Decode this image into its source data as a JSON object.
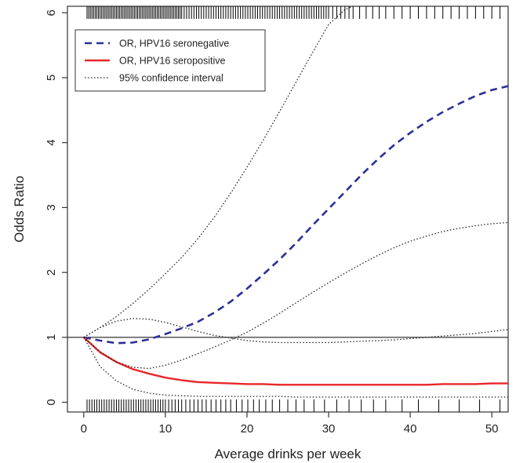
{
  "chart_data": {
    "type": "line",
    "title": "",
    "xlabel": "Average drinks per week",
    "ylabel": "Odds Ratio",
    "xlim": [
      -2,
      52
    ],
    "ylim": [
      -0.15,
      6.1
    ],
    "xticks": [
      0,
      10,
      20,
      30,
      40,
      50
    ],
    "yticks": [
      0,
      1,
      2,
      3,
      4,
      5,
      6
    ],
    "grid": false,
    "legend_position": "top-left",
    "reference_line": 1,
    "series": [
      {
        "name": "OR, HPV16 seronegative",
        "style": "dashed",
        "color": "#2b2f9a",
        "x": [
          0,
          2,
          4,
          6,
          8,
          10,
          12,
          14,
          16,
          18,
          20,
          22,
          24,
          26,
          28,
          30,
          32,
          34,
          36,
          38,
          40,
          42,
          44,
          46,
          48,
          50,
          52
        ],
        "y": [
          1.0,
          0.95,
          0.91,
          0.92,
          0.97,
          1.05,
          1.14,
          1.24,
          1.38,
          1.55,
          1.75,
          1.97,
          2.2,
          2.45,
          2.72,
          2.98,
          3.24,
          3.5,
          3.74,
          3.96,
          4.15,
          4.32,
          4.47,
          4.6,
          4.72,
          4.81,
          4.87
        ]
      },
      {
        "name": "OR, HPV16 seropositive",
        "style": "solid",
        "color": "#e8262a",
        "x": [
          0,
          2,
          4,
          6,
          8,
          10,
          12,
          14,
          16,
          18,
          20,
          22,
          24,
          26,
          28,
          30,
          32,
          34,
          36,
          38,
          40,
          42,
          44,
          46,
          48,
          50,
          52
        ],
        "y": [
          1.0,
          0.77,
          0.62,
          0.51,
          0.44,
          0.38,
          0.34,
          0.31,
          0.3,
          0.29,
          0.28,
          0.28,
          0.27,
          0.27,
          0.27,
          0.27,
          0.27,
          0.27,
          0.27,
          0.27,
          0.27,
          0.27,
          0.28,
          0.28,
          0.28,
          0.29,
          0.29
        ]
      },
      {
        "name": "95% confidence interval",
        "style": "dotted",
        "color": "#222222",
        "x": [
          0,
          2,
          4,
          6,
          8,
          10,
          12,
          14,
          16,
          18,
          20,
          22,
          24,
          26,
          28,
          30,
          32,
          33
        ],
        "y": [
          1.0,
          1.15,
          1.32,
          1.52,
          1.74,
          1.98,
          2.23,
          2.52,
          2.85,
          3.22,
          3.62,
          4.04,
          4.48,
          4.93,
          5.38,
          5.82,
          6.05,
          6.1
        ]
      },
      {
        "name": "",
        "style": "dotted",
        "color": "#222222",
        "x": [
          0,
          2,
          4,
          6,
          8,
          10,
          12,
          14,
          16,
          18,
          20,
          22,
          24,
          26,
          28,
          30,
          32,
          34,
          36,
          38,
          40,
          42,
          44,
          46,
          48,
          50,
          52
        ],
        "y": [
          1.0,
          0.78,
          0.62,
          0.54,
          0.52,
          0.57,
          0.65,
          0.75,
          0.85,
          0.96,
          1.08,
          1.22,
          1.37,
          1.53,
          1.69,
          1.84,
          1.99,
          2.13,
          2.26,
          2.38,
          2.48,
          2.56,
          2.63,
          2.68,
          2.72,
          2.75,
          2.77
        ]
      },
      {
        "name": "",
        "style": "dotted",
        "color": "#222222",
        "x": [
          0,
          2,
          4,
          6,
          8,
          10,
          12,
          14,
          16,
          18,
          20,
          22,
          24,
          26,
          28,
          30,
          32,
          34,
          36,
          38,
          40,
          42,
          44,
          46,
          48,
          50,
          52
        ],
        "y": [
          1.0,
          1.15,
          1.25,
          1.29,
          1.28,
          1.23,
          1.16,
          1.09,
          1.03,
          0.99,
          0.95,
          0.93,
          0.92,
          0.92,
          0.92,
          0.92,
          0.93,
          0.94,
          0.95,
          0.96,
          0.98,
          1.0,
          1.02,
          1.04,
          1.06,
          1.09,
          1.12
        ]
      },
      {
        "name": "",
        "style": "dotted",
        "color": "#222222",
        "x": [
          0,
          2,
          4,
          6,
          8,
          10,
          12,
          14,
          16,
          18,
          20,
          22,
          24,
          26,
          28,
          30,
          32,
          34,
          36,
          38,
          40,
          42,
          44,
          46,
          48,
          50,
          52
        ],
        "y": [
          1.0,
          0.55,
          0.33,
          0.2,
          0.14,
          0.11,
          0.1,
          0.09,
          0.09,
          0.09,
          0.09,
          0.09,
          0.09,
          0.08,
          0.08,
          0.08,
          0.08,
          0.08,
          0.08,
          0.08,
          0.08,
          0.08,
          0.08,
          0.08,
          0.08,
          0.08,
          0.08
        ]
      }
    ],
    "rug_top": [
      0.4,
      0.6,
      0.8,
      1.0,
      1.2,
      1.4,
      1.6,
      1.8,
      2.0,
      2.2,
      2.4,
      2.6,
      2.8,
      3.0,
      3.2,
      3.4,
      3.6,
      3.8,
      4.0,
      4.2,
      4.4,
      4.6,
      4.8,
      5.0,
      5.2,
      5.4,
      5.6,
      5.8,
      6.0,
      6.2,
      6.4,
      6.6,
      6.8,
      7.0,
      7.2,
      7.4,
      7.6,
      7.8,
      8.0,
      8.2,
      8.4,
      8.6,
      8.8,
      9.0,
      9.2,
      9.4,
      9.6,
      9.8,
      10.0,
      10.2,
      10.4,
      10.6,
      10.8,
      11.0,
      11.2,
      11.4,
      11.6,
      11.8,
      12.0,
      12.3,
      12.6,
      12.9,
      13.2,
      13.5,
      13.8,
      14.1,
      14.4,
      14.7,
      15.0,
      15.3,
      15.6,
      15.9,
      16.2,
      16.5,
      16.8,
      17.1,
      17.4,
      17.7,
      18.0,
      18.3,
      18.6,
      18.9,
      19.2,
      19.5,
      19.8,
      20.1,
      20.4,
      20.7,
      21.0,
      21.3,
      21.6,
      21.9,
      22.2,
      22.5,
      22.8,
      23.1,
      23.4,
      23.7,
      24.0,
      24.3,
      24.6,
      24.9,
      25.2,
      25.5,
      25.8,
      26.1,
      26.4,
      26.7,
      27.0,
      27.3,
      27.6,
      27.9,
      28.2,
      28.5,
      28.8,
      29.1,
      29.4,
      29.7,
      30.0,
      30.5,
      31.0,
      31.5,
      32.0,
      32.5,
      33.0,
      33.8,
      34.6,
      35.4,
      36.2,
      37.0,
      38.0,
      39.0,
      40.0,
      41.0,
      42.0,
      43.0,
      44.0,
      45.0,
      46.0,
      47.0,
      48.0,
      49.0,
      50.0,
      51.0
    ],
    "rug_bottom": [
      0.4,
      0.7,
      1.0,
      1.3,
      1.6,
      1.9,
      2.2,
      2.5,
      2.8,
      3.1,
      3.4,
      3.7,
      4.0,
      4.3,
      4.6,
      4.9,
      5.2,
      5.5,
      5.8,
      6.1,
      6.4,
      6.7,
      7.0,
      7.3,
      7.6,
      7.9,
      8.2,
      8.5,
      8.8,
      9.1,
      9.4,
      9.7,
      10.0,
      10.4,
      10.8,
      11.2,
      11.6,
      12.0,
      12.5,
      13.0,
      13.5,
      14.0,
      14.5,
      15.0,
      15.6,
      16.2,
      16.8,
      17.4,
      18.0,
      18.7,
      19.4,
      20.1,
      20.8,
      21.5,
      22.3,
      23.1,
      24.0,
      25.0,
      26.0,
      27.0,
      28.2,
      29.5,
      31.0,
      32.5,
      34.0,
      35.5,
      37.0,
      39.0,
      41.0,
      43.5,
      46.0,
      48.5,
      51.0
    ],
    "legend": {
      "entries": [
        {
          "label": "OR, HPV16 seronegative",
          "style": "dashed",
          "color": "#2b2f9a"
        },
        {
          "label": "OR, HPV16 seropositive",
          "style": "solid",
          "color": "#e8262a"
        },
        {
          "label": "95% confidence interval",
          "style": "dotted",
          "color": "#222222"
        }
      ]
    }
  }
}
